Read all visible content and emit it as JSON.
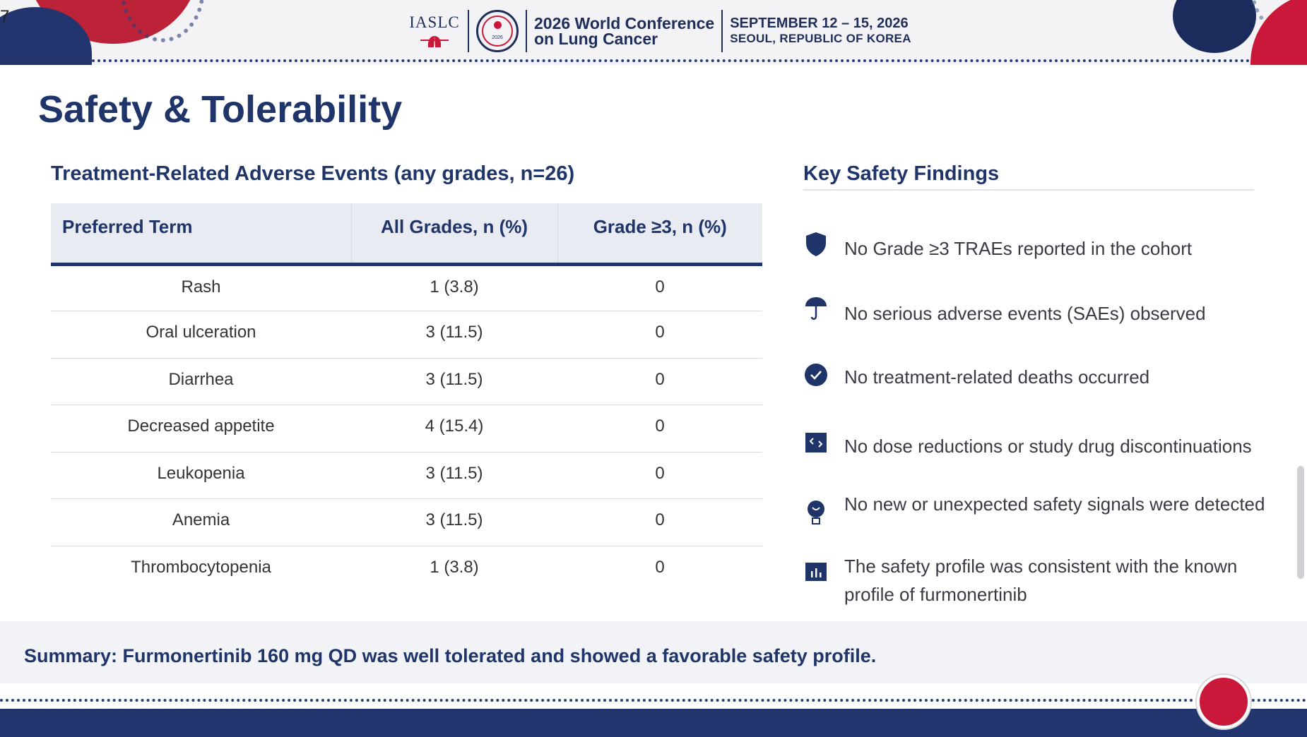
{
  "slide": {
    "page_number": "7",
    "title": "Safety & Tolerability"
  },
  "header": {
    "org": "IASLC",
    "seal_year": "2026",
    "conference_line1": "2026 World Conference",
    "conference_line2": "on Lung Cancer",
    "dates": "SEPTEMBER 12 – 15, 2026",
    "location": "SEOUL, REPUBLIC OF KOREA"
  },
  "table": {
    "title": "Treatment-Related Adverse Events (any grades, n=26)",
    "headers": [
      "Preferred Term",
      "All Grades, n (%)",
      "Grade ≥3, n (%)"
    ],
    "rows": [
      {
        "term": "Rash",
        "all": "1 (3.8)",
        "g3": "0"
      },
      {
        "term": "Oral ulceration",
        "all": "3 (11.5)",
        "g3": "0"
      },
      {
        "term": "Diarrhea",
        "all": "3 (11.5)",
        "g3": "0"
      },
      {
        "term": "Decreased appetite",
        "all": "4 (15.4)",
        "g3": "0"
      },
      {
        "term": "Leukopenia",
        "all": "3 (11.5)",
        "g3": "0"
      },
      {
        "term": "Anemia",
        "all": "3 (11.5)",
        "g3": "0"
      },
      {
        "term": "Thrombocytopenia",
        "all": "1 (3.8)",
        "g3": "0"
      }
    ]
  },
  "findings": {
    "title": "Key Safety Findings",
    "items": [
      {
        "icon": "shield-icon",
        "text": "No Grade ≥3 TRAEs reported in the cohort"
      },
      {
        "icon": "umbrella-icon",
        "text": "No serious adverse events (SAEs) observed"
      },
      {
        "icon": "check-circle-icon",
        "text": "No treatment-related deaths occurred"
      },
      {
        "icon": "exchange-icon",
        "text": "No dose reductions or study drug discontinuations"
      },
      {
        "icon": "lightbulb-icon",
        "text": "No new or unexpected safety signals were detected"
      },
      {
        "icon": "bar-chart-icon",
        "text": "The safety profile was consistent with the known profile of furmonertinib"
      }
    ]
  },
  "summary": "Summary: Furmonertinib 160 mg QD was well tolerated and showed a favorable safety profile.",
  "colors": {
    "navy": "#1f3468",
    "red": "#c9183a"
  }
}
